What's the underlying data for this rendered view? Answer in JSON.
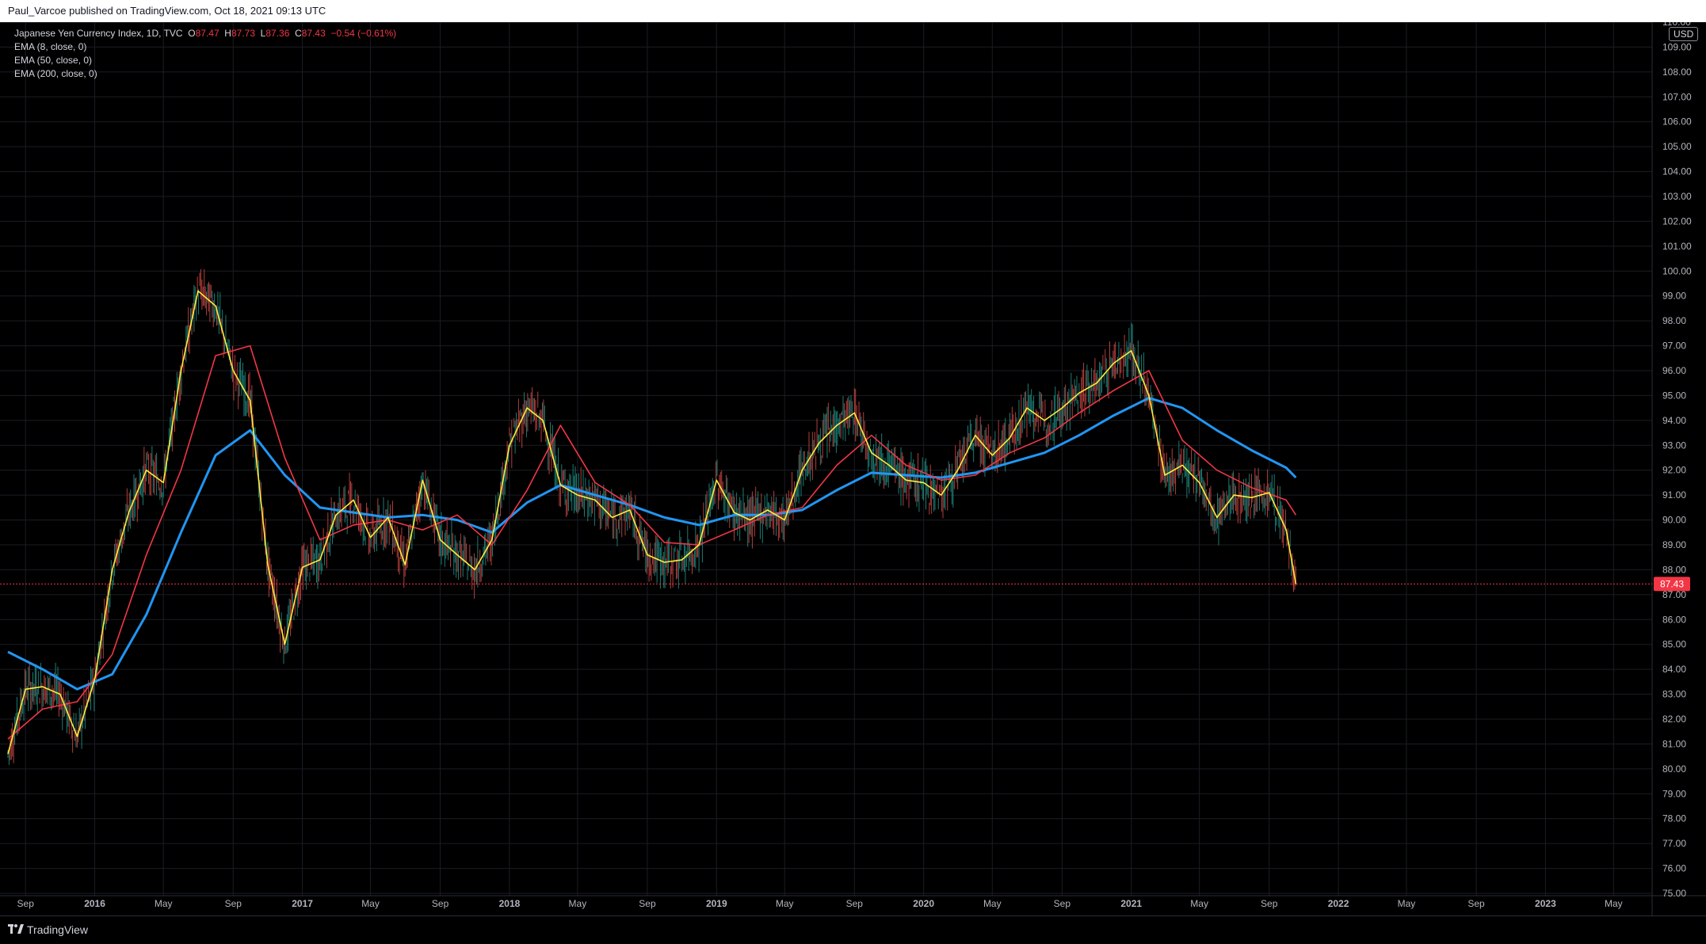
{
  "header": {
    "published_text": "Paul_Varcoe published on TradingView.com, Oct 18, 2021 09:13 UTC"
  },
  "legend": {
    "symbol": "Japanese Yen Currency Index, 1D, TVC",
    "o_label": "O",
    "o_value": "87.47",
    "h_label": "H",
    "h_value": "87.73",
    "l_label": "L",
    "l_value": "87.36",
    "c_label": "C",
    "c_value": "87.43",
    "change": "−0.54 (−0.61%)",
    "indicators": [
      "EMA (8, close, 0)",
      "EMA (50, close, 0)",
      "EMA (200, close, 0)"
    ]
  },
  "currency_badge": "USD",
  "footer": {
    "brand": "TradingView",
    "logo_icon": "tradingview-logo-icon"
  },
  "colors": {
    "background": "#000000",
    "grid": "#1a1d24",
    "candle_up": "#26a69a",
    "candle_down": "#ef5350",
    "ema8": "#ffeb3b",
    "ema50": "#f23645",
    "ema200": "#2196f3",
    "last_price": "#f23645"
  },
  "chart_data": {
    "type": "line",
    "title": "Japanese Yen Currency Index, 1D, TVC",
    "xlabel": "",
    "ylabel": "",
    "x_ticks": [
      "Sep",
      "2016",
      "May",
      "Sep",
      "2017",
      "May",
      "Sep",
      "2018",
      "May",
      "Sep",
      "2019",
      "May",
      "Sep",
      "2020",
      "May",
      "Sep",
      "2021",
      "May",
      "Sep",
      "2022",
      "May",
      "Sep",
      "2023",
      "May"
    ],
    "x_tick_dates": [
      "2015-09-01",
      "2016-01-01",
      "2016-05-01",
      "2016-09-01",
      "2017-01-01",
      "2017-05-01",
      "2017-09-01",
      "2018-01-01",
      "2018-05-01",
      "2018-09-01",
      "2019-01-01",
      "2019-05-01",
      "2019-09-01",
      "2020-01-01",
      "2020-05-01",
      "2020-09-01",
      "2021-01-01",
      "2021-05-01",
      "2021-09-01",
      "2022-01-01",
      "2022-05-01",
      "2022-09-01",
      "2023-01-01",
      "2023-05-01"
    ],
    "y_ticks": [
      "75.00",
      "76.00",
      "77.00",
      "78.00",
      "79.00",
      "80.00",
      "81.00",
      "82.00",
      "83.00",
      "84.00",
      "85.00",
      "86.00",
      "87.00",
      "88.00",
      "89.00",
      "90.00",
      "91.00",
      "92.00",
      "93.00",
      "94.00",
      "95.00",
      "96.00",
      "97.00",
      "98.00",
      "99.00",
      "100.00",
      "101.00",
      "102.00",
      "103.00",
      "104.00",
      "105.00",
      "106.00",
      "107.00",
      "108.00",
      "109.00",
      "110.00"
    ],
    "ylim": [
      75,
      110
    ],
    "xlim": [
      "2015-08-01",
      "2023-07-01"
    ],
    "last_price": 87.43,
    "last_price_label": "87.43",
    "series": [
      {
        "name": "EMA (8, close, 0)",
        "color": "#ffeb3b",
        "x": [
          "2015-08-01",
          "2015-09-01",
          "2015-10-01",
          "2015-11-01",
          "2015-12-01",
          "2016-01-01",
          "2016-02-01",
          "2016-03-01",
          "2016-04-01",
          "2016-05-01",
          "2016-06-01",
          "2016-07-01",
          "2016-08-01",
          "2016-09-01",
          "2016-10-01",
          "2016-11-01",
          "2016-12-01",
          "2017-01-01",
          "2017-02-01",
          "2017-03-01",
          "2017-04-01",
          "2017-05-01",
          "2017-06-01",
          "2017-07-01",
          "2017-08-01",
          "2017-09-01",
          "2017-10-01",
          "2017-11-01",
          "2017-12-01",
          "2018-01-01",
          "2018-02-01",
          "2018-03-01",
          "2018-04-01",
          "2018-05-01",
          "2018-06-01",
          "2018-07-01",
          "2018-08-01",
          "2018-09-01",
          "2018-10-01",
          "2018-11-01",
          "2018-12-01",
          "2019-01-01",
          "2019-02-01",
          "2019-03-01",
          "2019-04-01",
          "2019-05-01",
          "2019-06-01",
          "2019-07-01",
          "2019-08-01",
          "2019-09-01",
          "2019-10-01",
          "2019-11-01",
          "2019-12-01",
          "2020-01-01",
          "2020-02-01",
          "2020-03-01",
          "2020-04-01",
          "2020-05-01",
          "2020-06-01",
          "2020-07-01",
          "2020-08-01",
          "2020-09-01",
          "2020-10-01",
          "2020-11-01",
          "2020-12-01",
          "2021-01-01",
          "2021-02-01",
          "2021-03-01",
          "2021-04-01",
          "2021-05-01",
          "2021-06-01",
          "2021-07-01",
          "2021-08-01",
          "2021-09-01",
          "2021-10-01",
          "2021-10-18"
        ],
        "values": [
          80.6,
          83.2,
          83.3,
          83.0,
          81.3,
          83.6,
          88.0,
          90.3,
          92.0,
          91.5,
          96.0,
          99.2,
          98.6,
          96.0,
          94.8,
          88.2,
          85.0,
          88.1,
          88.4,
          90.2,
          90.8,
          89.3,
          90.1,
          88.2,
          91.6,
          89.2,
          88.6,
          88.0,
          89.2,
          93.0,
          94.5,
          94.0,
          91.4,
          91.0,
          90.8,
          90.1,
          90.4,
          88.6,
          88.3,
          88.4,
          89.0,
          91.6,
          90.3,
          90.0,
          90.4,
          90.0,
          92.0,
          93.1,
          93.8,
          94.3,
          92.7,
          92.2,
          91.6,
          91.5,
          91.0,
          92.0,
          93.4,
          92.6,
          93.3,
          94.5,
          94.0,
          94.5,
          95.1,
          95.5,
          96.3,
          96.8,
          95.0,
          91.8,
          92.2,
          91.5,
          90.1,
          91.0,
          90.9,
          91.1,
          89.6,
          87.43
        ]
      },
      {
        "name": "EMA (50, close, 0)",
        "color": "#f23645",
        "x": [
          "2015-08-01",
          "2015-10-01",
          "2015-12-01",
          "2016-02-01",
          "2016-04-01",
          "2016-06-01",
          "2016-08-01",
          "2016-10-01",
          "2016-12-01",
          "2017-02-01",
          "2017-04-01",
          "2017-06-01",
          "2017-08-01",
          "2017-10-01",
          "2017-12-01",
          "2018-02-01",
          "2018-04-01",
          "2018-06-01",
          "2018-08-01",
          "2018-10-01",
          "2018-12-01",
          "2019-02-01",
          "2019-04-01",
          "2019-06-01",
          "2019-08-01",
          "2019-10-01",
          "2019-12-01",
          "2020-02-01",
          "2020-04-01",
          "2020-06-01",
          "2020-08-01",
          "2020-10-01",
          "2020-12-01",
          "2021-02-01",
          "2021-04-01",
          "2021-06-01",
          "2021-08-01",
          "2021-10-01",
          "2021-10-18"
        ],
        "values": [
          81.2,
          82.4,
          82.7,
          84.6,
          88.6,
          92.0,
          96.6,
          97.0,
          92.5,
          89.2,
          89.8,
          90.0,
          89.6,
          90.2,
          89.0,
          91.2,
          93.8,
          91.5,
          90.6,
          89.1,
          89.0,
          89.6,
          90.2,
          90.5,
          92.2,
          93.4,
          92.2,
          91.6,
          91.8,
          92.7,
          93.3,
          94.3,
          95.2,
          96.0,
          93.2,
          92.0,
          91.3,
          90.8,
          90.2
        ]
      },
      {
        "name": "EMA (200, close, 0)",
        "color": "#2196f3",
        "x": [
          "2015-08-01",
          "2015-10-01",
          "2015-12-01",
          "2016-02-01",
          "2016-04-01",
          "2016-06-01",
          "2016-08-01",
          "2016-10-01",
          "2016-12-01",
          "2017-02-01",
          "2017-04-01",
          "2017-06-01",
          "2017-08-01",
          "2017-10-01",
          "2017-12-01",
          "2018-02-01",
          "2018-04-01",
          "2018-06-01",
          "2018-08-01",
          "2018-10-01",
          "2018-12-01",
          "2019-02-01",
          "2019-04-01",
          "2019-06-01",
          "2019-08-01",
          "2019-10-01",
          "2019-12-01",
          "2020-02-01",
          "2020-04-01",
          "2020-06-01",
          "2020-08-01",
          "2020-10-01",
          "2020-12-01",
          "2021-02-01",
          "2021-04-01",
          "2021-06-01",
          "2021-08-01",
          "2021-10-01",
          "2021-10-18"
        ],
        "values": [
          84.7,
          84.0,
          83.2,
          83.8,
          86.2,
          89.5,
          92.6,
          93.6,
          91.8,
          90.5,
          90.3,
          90.1,
          90.2,
          90.0,
          89.5,
          90.7,
          91.4,
          91.0,
          90.6,
          90.1,
          89.8,
          90.2,
          90.2,
          90.4,
          91.2,
          91.9,
          91.8,
          91.7,
          91.9,
          92.3,
          92.7,
          93.4,
          94.2,
          94.9,
          94.5,
          93.6,
          92.8,
          92.1,
          91.7
        ]
      }
    ]
  }
}
